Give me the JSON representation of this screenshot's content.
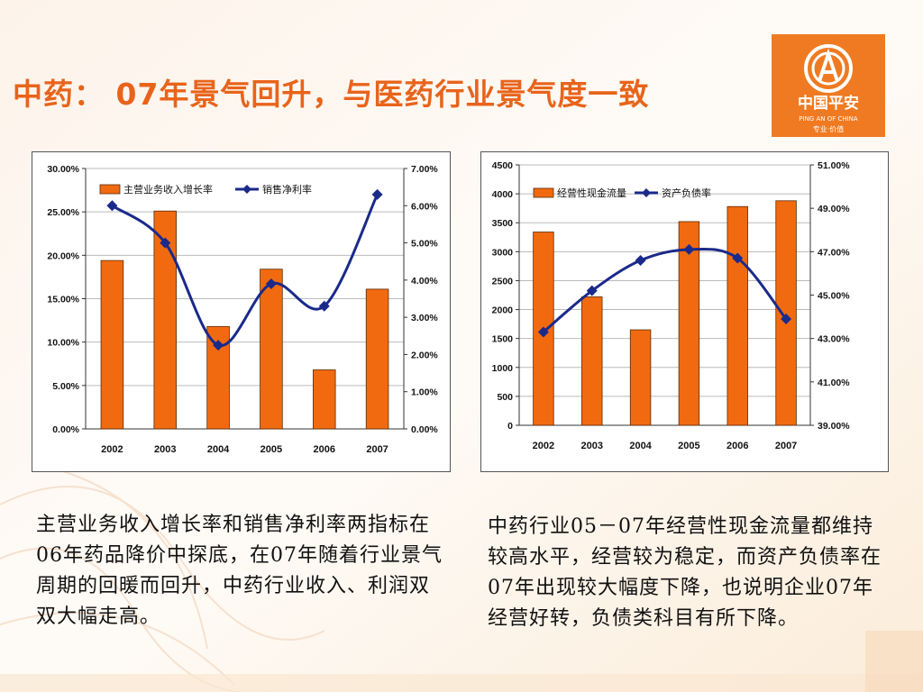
{
  "slide": {
    "title": "中药： 07年景气回升，与医药行业景气度一致",
    "logo": {
      "name": "中国平安",
      "english": "PING AN OF CHINA",
      "slogan": "专业·价值"
    },
    "caption_left": "主营业务收入增长率和销售净利率两指标在06年药品降价中探底，在07年随着行业景气周期的回暖而回升，中药行业收入、利润双双大幅走高。",
    "caption_right": "中药行业05－07年经营性现金流量都维持较高水平，经营较为稳定，而资产负债率在07年出现较大幅度下降，也说明企业07年经营好转，负债类科目有所下降。"
  },
  "colors": {
    "title": "#e8641b",
    "bar": "#f26a10",
    "bar_edge": "#5a2a08",
    "line": "#1a2a8a",
    "logo_bg": "#f07a22"
  },
  "chart_data": [
    {
      "type": "bar",
      "categories": [
        "2002",
        "2003",
        "2004",
        "2005",
        "2006",
        "2007"
      ],
      "series": [
        {
          "name": "主营业务收入增长率",
          "kind": "bar",
          "axis": "left",
          "values": [
            0.194,
            0.251,
            0.118,
            0.184,
            0.068,
            0.161
          ]
        },
        {
          "name": "销售净利率",
          "kind": "line",
          "axis": "right",
          "values": [
            0.06,
            0.05,
            0.0225,
            0.039,
            0.033,
            0.063
          ]
        }
      ],
      "left_axis": {
        "ylim": [
          0,
          0.3
        ],
        "ticks": [
          "0.00%",
          "5.00%",
          "10.00%",
          "15.00%",
          "20.00%",
          "25.00%",
          "30.00%"
        ]
      },
      "right_axis": {
        "ylim": [
          0,
          0.07
        ],
        "ticks": [
          "0.00%",
          "1.00%",
          "2.00%",
          "3.00%",
          "4.00%",
          "5.00%",
          "6.00%",
          "7.00%"
        ]
      },
      "grid": true,
      "legend": "top-left"
    },
    {
      "type": "bar",
      "categories": [
        "2002",
        "2003",
        "2004",
        "2005",
        "2006",
        "2007"
      ],
      "series": [
        {
          "name": "经营性现金流量",
          "kind": "bar",
          "axis": "left",
          "values": [
            3340,
            2220,
            1650,
            3520,
            3780,
            3880
          ]
        },
        {
          "name": "资产负债率",
          "kind": "line",
          "axis": "right",
          "values": [
            0.433,
            0.452,
            0.466,
            0.471,
            0.467,
            0.439
          ]
        }
      ],
      "left_axis": {
        "ylim": [
          0,
          4500
        ],
        "ticks": [
          "0",
          "500",
          "1000",
          "1500",
          "2000",
          "2500",
          "3000",
          "3500",
          "4000",
          "4500"
        ]
      },
      "right_axis": {
        "ylim": [
          0.39,
          0.51
        ],
        "ticks": [
          "39.00%",
          "41.00%",
          "43.00%",
          "45.00%",
          "47.00%",
          "49.00%",
          "51.00%"
        ]
      },
      "grid": true,
      "legend": "top-left"
    }
  ]
}
